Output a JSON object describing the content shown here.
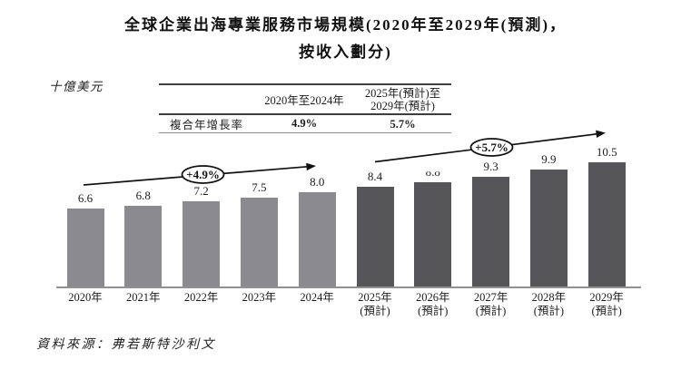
{
  "title": {
    "line1": "全球企業出海專業服務市場規模(2020年至2029年(預測)，",
    "line2": "按收入劃分)"
  },
  "unit_label": "十億美元",
  "cagr_table": {
    "row_label": "複合年增長率",
    "columns": [
      {
        "header": "2020年至2024年",
        "value": "4.9%"
      },
      {
        "header": "2025年(預計)至\n2029年(預計)",
        "value": "5.7%"
      }
    ]
  },
  "source": "資料來源：弗若斯特沙利文",
  "chart_data": {
    "type": "bar",
    "title": "全球企業出海專業服務市場規模(2020年至2029年(預測)，按收入劃分)",
    "unit_label": "十億美元",
    "ylim": [
      0,
      11
    ],
    "grid": false,
    "categories": [
      "2020年",
      "2021年",
      "2022年",
      "2023年",
      "2024年",
      "2025年(預計)",
      "2026年(預計)",
      "2027年(預計)",
      "2028年(預計)",
      "2029年(預計)"
    ],
    "bars": [
      {
        "year": "2020年",
        "note": "",
        "value": 6.6,
        "segment": "historical"
      },
      {
        "year": "2021年",
        "note": "",
        "value": 6.8,
        "segment": "historical"
      },
      {
        "year": "2022年",
        "note": "",
        "value": 7.2,
        "segment": "historical"
      },
      {
        "year": "2023年",
        "note": "",
        "value": 7.5,
        "segment": "historical"
      },
      {
        "year": "2024年",
        "note": "",
        "value": 8.0,
        "segment": "historical"
      },
      {
        "year": "2025年",
        "note": "(預計)",
        "value": 8.4,
        "segment": "forecast"
      },
      {
        "year": "2026年",
        "note": "(預計)",
        "value": 8.8,
        "segment": "forecast",
        "label_partially_hidden": true
      },
      {
        "year": "2027年",
        "note": "(預計)",
        "value": 9.3,
        "segment": "forecast"
      },
      {
        "year": "2028年",
        "note": "(預計)",
        "value": 9.9,
        "segment": "forecast"
      },
      {
        "year": "2029年",
        "note": "(預計)",
        "value": 10.5,
        "segment": "forecast"
      }
    ],
    "colors": {
      "historical": "#8b8b8f",
      "forecast": "#565659"
    },
    "annotations": [
      {
        "label": "+4.9%",
        "applies_to": "2020年至2024年"
      },
      {
        "label": "+5.7%",
        "applies_to": "2025年(預計)至2029年(預計)"
      }
    ]
  }
}
